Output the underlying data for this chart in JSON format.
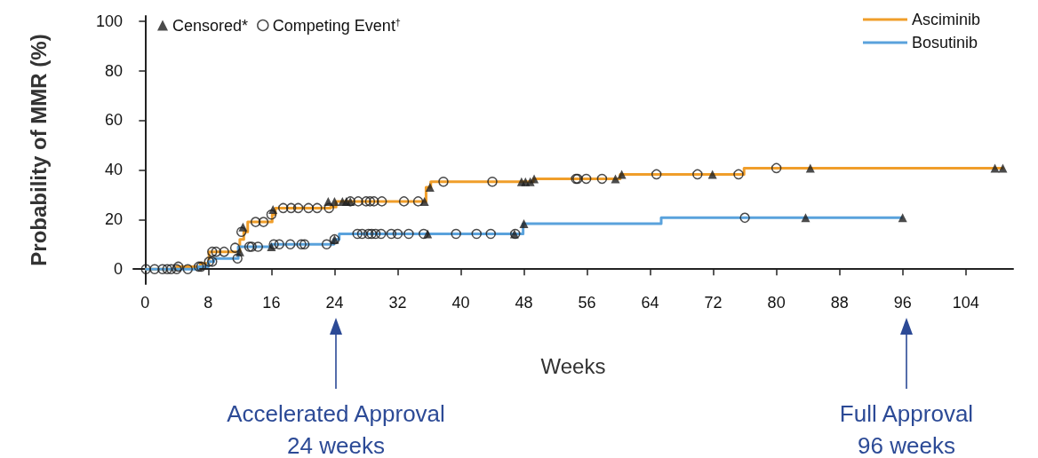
{
  "chart_data": {
    "type": "step",
    "xlabel": "Weeks",
    "ylabel": "Probability of MMR (%)",
    "xlim": [
      -1.5,
      110
    ],
    "xticks": [
      0,
      8,
      16,
      24,
      32,
      40,
      48,
      56,
      64,
      72,
      80,
      88,
      96,
      104
    ],
    "ylim": [
      -6,
      102
    ],
    "yticks": [
      0,
      20,
      40,
      60,
      80,
      100
    ],
    "grid": false,
    "legend": "top right",
    "series": [
      {
        "name": "Asciminib",
        "color": "#f09e2a",
        "x": [
          0,
          4,
          7,
          8.1,
          12,
          12.5,
          13,
          16.1,
          16.5,
          23.5,
          24.2,
          35.6,
          36.2,
          49.2,
          60.2,
          75.9,
          108.8
        ],
        "values": [
          0,
          1,
          2.3,
          7,
          12,
          15,
          19,
          22,
          24.6,
          25,
          27.3,
          33,
          35.2,
          36.4,
          38.2,
          40.7,
          40.7
        ]
      },
      {
        "name": "Bosutinib",
        "color": "#5aa2dc",
        "x": [
          0,
          6.7,
          8,
          8.7,
          11.8,
          16,
          23.9,
          24.6,
          47.9,
          65.4,
          96
        ],
        "values": [
          0,
          1,
          3,
          4.3,
          9,
          10,
          12,
          14.2,
          18.3,
          20.7,
          20.7
        ]
      },
      {
        "name": "Censored*",
        "type": "scatter",
        "marker": "triangle",
        "color": "#1e1e1e",
        "x": [
          12.4,
          16.2,
          23.2,
          24,
          25,
          25.5,
          26,
          35.4,
          36.1,
          47.7,
          48.2,
          48.8,
          49.3,
          59.6,
          60.4,
          71.9,
          84.3,
          107.7,
          108.7,
          12,
          16,
          24,
          35.8,
          46.8,
          48,
          83.7,
          96
        ],
        "values": [
          17,
          24,
          27.3,
          27.3,
          27.3,
          27.3,
          27.3,
          27.3,
          33,
          35.2,
          35.2,
          35.2,
          36.4,
          36.4,
          38.2,
          38.2,
          40.7,
          40.7,
          40.7,
          7,
          9,
          12,
          14.2,
          14.2,
          18.3,
          20.7,
          20.7
        ]
      },
      {
        "name": "Competing Event$^{†}$",
        "type": "scatter",
        "marker": "circle",
        "color": "#1e1e1e",
        "x": [
          4.2,
          8.5,
          9,
          10,
          11.4,
          12.2,
          14,
          15,
          16,
          17.5,
          18.5,
          19.4,
          20.7,
          21.8,
          23.3,
          26,
          27,
          28,
          28.5,
          29,
          30,
          32.8,
          34.6,
          37.8,
          44,
          54.6,
          54.8,
          55.9,
          57.9,
          64.8,
          70,
          75.2,
          80,
          0.1,
          1.2,
          2.2,
          2.8,
          3.3,
          4,
          5.4,
          6.8,
          7.1,
          8.1,
          8.5,
          11.7,
          13.2,
          13.5,
          14.3,
          16.3,
          17,
          18.4,
          19.8,
          20.2,
          23,
          24,
          26.9,
          27.5,
          28.3,
          28.7,
          29.2,
          29.9,
          31.2,
          32,
          33.4,
          35.3,
          39.4,
          42,
          43.8,
          46.9,
          76
        ],
        "values": [
          1,
          7,
          7,
          7,
          8.6,
          15,
          19,
          19,
          22,
          24.6,
          24.6,
          24.6,
          24.6,
          24.6,
          24.6,
          27.3,
          27.3,
          27.3,
          27.3,
          27.3,
          27.3,
          27.3,
          27.3,
          35.2,
          35.2,
          36.4,
          36.4,
          36.4,
          36.4,
          38.2,
          38.2,
          38.2,
          40.7,
          0,
          0,
          0,
          0,
          0,
          0,
          0,
          1,
          1,
          3,
          3,
          4.3,
          9,
          9,
          9,
          10,
          10,
          10,
          10,
          10,
          10,
          12,
          14.2,
          14.2,
          14.2,
          14.2,
          14.2,
          14.2,
          14.2,
          14.2,
          14.2,
          14.2,
          14.2,
          14.2,
          14.2,
          14.2,
          20.7
        ]
      }
    ],
    "annotations": [
      "Accelerated Approval\n24 weeks",
      "Full Approval\n96 weeks"
    ]
  }
}
